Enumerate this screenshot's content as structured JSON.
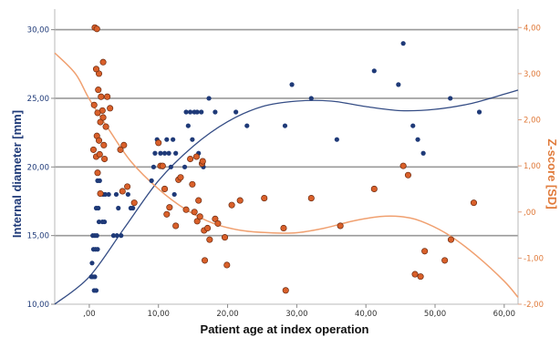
{
  "chart_data": {
    "type": "scatter",
    "xlabel": "Patient age at index operation",
    "ylabel_left": "Internal diameter [mm]",
    "ylabel_right": "Z-score [SD]",
    "xlim": [
      -5,
      62
    ],
    "ylim_left": [
      10,
      31.5
    ],
    "ylim_right": [
      -2,
      4.4
    ],
    "x_ticks": [
      0,
      10,
      20,
      30,
      40,
      50,
      60
    ],
    "x_tick_labels": [
      ",00",
      "10,00",
      "20,00",
      "30,00",
      "40,00",
      "50,00",
      "60,00"
    ],
    "y_left_ticks": [
      10,
      15,
      20,
      25,
      30
    ],
    "y_left_tick_labels": [
      "10,00",
      "15,00",
      "20,00",
      "25,00",
      "30,00"
    ],
    "y_right_ticks": [
      -2,
      -1,
      0,
      1,
      2,
      3,
      4
    ],
    "y_right_tick_labels": [
      "-2,00",
      "-1,00",
      ",00",
      "1,00",
      "2,00",
      "3,00",
      "4,00"
    ],
    "gridlines_left": [
      15,
      20,
      25,
      30
    ],
    "colors": {
      "diameter": "#1f3a78",
      "zscore": "#d9602a",
      "zscore_fit": "#f0a070",
      "grid": "#999999"
    },
    "series": [
      {
        "axis": "left",
        "points": [
          [
            0.3,
            12
          ],
          [
            0.5,
            12
          ],
          [
            0.8,
            12
          ],
          [
            0.4,
            13
          ],
          [
            0.6,
            14
          ],
          [
            0.9,
            14
          ],
          [
            1.2,
            14
          ],
          [
            0.7,
            11
          ],
          [
            1.0,
            11
          ],
          [
            0.5,
            15
          ],
          [
            0.8,
            15
          ],
          [
            1.1,
            15
          ],
          [
            1.4,
            16
          ],
          [
            1.9,
            16
          ],
          [
            2.2,
            16
          ],
          [
            1.0,
            17
          ],
          [
            1.3,
            17
          ],
          [
            1.6,
            18
          ],
          [
            2.0,
            18
          ],
          [
            2.3,
            18
          ],
          [
            1.2,
            19
          ],
          [
            1.5,
            19
          ],
          [
            2.8,
            18
          ],
          [
            3.5,
            15
          ],
          [
            4.0,
            15
          ],
          [
            4.6,
            15
          ],
          [
            4.2,
            17
          ],
          [
            3.9,
            18
          ],
          [
            5.6,
            18
          ],
          [
            6.0,
            17
          ],
          [
            6.3,
            17
          ],
          [
            9.0,
            19
          ],
          [
            9.3,
            20
          ],
          [
            9.5,
            21
          ],
          [
            9.8,
            22
          ],
          [
            10.3,
            21
          ],
          [
            10.6,
            20
          ],
          [
            10.9,
            21
          ],
          [
            11.2,
            22
          ],
          [
            11.5,
            21
          ],
          [
            11.8,
            20
          ],
          [
            12.1,
            22
          ],
          [
            12.5,
            21
          ],
          [
            12.3,
            18
          ],
          [
            13.8,
            20
          ],
          [
            14.0,
            24
          ],
          [
            14.3,
            23
          ],
          [
            14.6,
            24
          ],
          [
            14.9,
            22
          ],
          [
            15.2,
            24
          ],
          [
            15.6,
            24
          ],
          [
            15.8,
            21
          ],
          [
            16.2,
            24
          ],
          [
            16.5,
            20
          ],
          [
            17.3,
            25
          ],
          [
            18.2,
            24
          ],
          [
            21.2,
            24
          ],
          [
            22.8,
            23
          ],
          [
            28.3,
            23
          ],
          [
            29.3,
            26
          ],
          [
            32.1,
            25
          ],
          [
            35.8,
            22
          ],
          [
            41.2,
            27
          ],
          [
            44.7,
            26
          ],
          [
            45.4,
            29
          ],
          [
            46.8,
            23
          ],
          [
            47.5,
            22
          ],
          [
            48.3,
            21
          ],
          [
            52.2,
            25
          ],
          [
            56.4,
            24
          ]
        ]
      },
      {
        "axis": "right",
        "points": [
          [
            0.8,
            4.0
          ],
          [
            1.1,
            3.97
          ],
          [
            1.4,
            3.0
          ],
          [
            1.7,
            2.5
          ],
          [
            2.0,
            3.25
          ],
          [
            1.0,
            3.1
          ],
          [
            1.3,
            2.65
          ],
          [
            1.9,
            2.2
          ],
          [
            2.6,
            2.5
          ],
          [
            3.0,
            2.25
          ],
          [
            0.7,
            2.32
          ],
          [
            1.2,
            2.15
          ],
          [
            1.6,
            1.95
          ],
          [
            2.0,
            2.05
          ],
          [
            2.4,
            1.85
          ],
          [
            1.1,
            1.65
          ],
          [
            1.4,
            1.55
          ],
          [
            2.1,
            1.45
          ],
          [
            0.6,
            1.35
          ],
          [
            1.0,
            1.2
          ],
          [
            1.5,
            1.25
          ],
          [
            2.2,
            1.15
          ],
          [
            1.2,
            0.85
          ],
          [
            1.6,
            0.4
          ],
          [
            4.5,
            1.35
          ],
          [
            4.8,
            0.45
          ],
          [
            5.0,
            1.45
          ],
          [
            5.5,
            0.55
          ],
          [
            6.5,
            0.2
          ],
          [
            10.0,
            1.5
          ],
          [
            10.3,
            1.0
          ],
          [
            10.6,
            1.0
          ],
          [
            10.9,
            0.5
          ],
          [
            11.2,
            -0.05
          ],
          [
            11.6,
            0.1
          ],
          [
            12.5,
            -0.3
          ],
          [
            12.9,
            0.7
          ],
          [
            13.2,
            0.75
          ],
          [
            14.0,
            0.05
          ],
          [
            14.6,
            1.15
          ],
          [
            14.9,
            0.6
          ],
          [
            15.2,
            0.0
          ],
          [
            15.5,
            1.2
          ],
          [
            15.6,
            -0.2
          ],
          [
            15.8,
            0.25
          ],
          [
            16.0,
            -0.1
          ],
          [
            16.3,
            1.05
          ],
          [
            16.6,
            -0.4
          ],
          [
            17.1,
            -0.35
          ],
          [
            17.4,
            -0.6
          ],
          [
            16.7,
            -1.05
          ],
          [
            16.4,
            1.1
          ],
          [
            18.2,
            -0.15
          ],
          [
            18.6,
            -0.25
          ],
          [
            19.6,
            -0.55
          ],
          [
            19.9,
            -1.15
          ],
          [
            20.6,
            0.15
          ],
          [
            21.8,
            0.25
          ],
          [
            25.3,
            0.3
          ],
          [
            28.1,
            -0.35
          ],
          [
            32.1,
            0.3
          ],
          [
            36.3,
            -0.3
          ],
          [
            41.2,
            0.5
          ],
          [
            45.4,
            1.0
          ],
          [
            46.1,
            0.8
          ],
          [
            47.1,
            -1.35
          ],
          [
            47.9,
            -1.4
          ],
          [
            48.5,
            -0.85
          ],
          [
            51.4,
            -1.05
          ],
          [
            52.3,
            -0.6
          ],
          [
            55.6,
            0.2
          ],
          [
            28.4,
            -1.7
          ]
        ]
      }
    ],
    "fit_lines": [
      {
        "axis": "left",
        "points": [
          [
            -5,
            10.0
          ],
          [
            0,
            12.0
          ],
          [
            5,
            15.5
          ],
          [
            10,
            19.0
          ],
          [
            15,
            21.5
          ],
          [
            20,
            23.3
          ],
          [
            25,
            24.4
          ],
          [
            30,
            24.8
          ],
          [
            35,
            24.8
          ],
          [
            40,
            24.4
          ],
          [
            45,
            24.1
          ],
          [
            50,
            24.2
          ],
          [
            55,
            24.6
          ],
          [
            60,
            25.3
          ],
          [
            62,
            25.6
          ]
        ]
      },
      {
        "axis": "right",
        "points": [
          [
            -5,
            3.45
          ],
          [
            -2,
            3.0
          ],
          [
            0,
            2.45
          ],
          [
            3,
            1.75
          ],
          [
            6,
            1.1
          ],
          [
            10,
            0.5
          ],
          [
            14,
            0.05
          ],
          [
            18,
            -0.25
          ],
          [
            22,
            -0.4
          ],
          [
            26,
            -0.45
          ],
          [
            30,
            -0.45
          ],
          [
            34,
            -0.35
          ],
          [
            38,
            -0.2
          ],
          [
            42,
            -0.1
          ],
          [
            45,
            -0.1
          ],
          [
            48,
            -0.2
          ],
          [
            52,
            -0.5
          ],
          [
            56,
            -0.95
          ],
          [
            60,
            -1.5
          ],
          [
            62,
            -1.85
          ]
        ]
      }
    ]
  }
}
